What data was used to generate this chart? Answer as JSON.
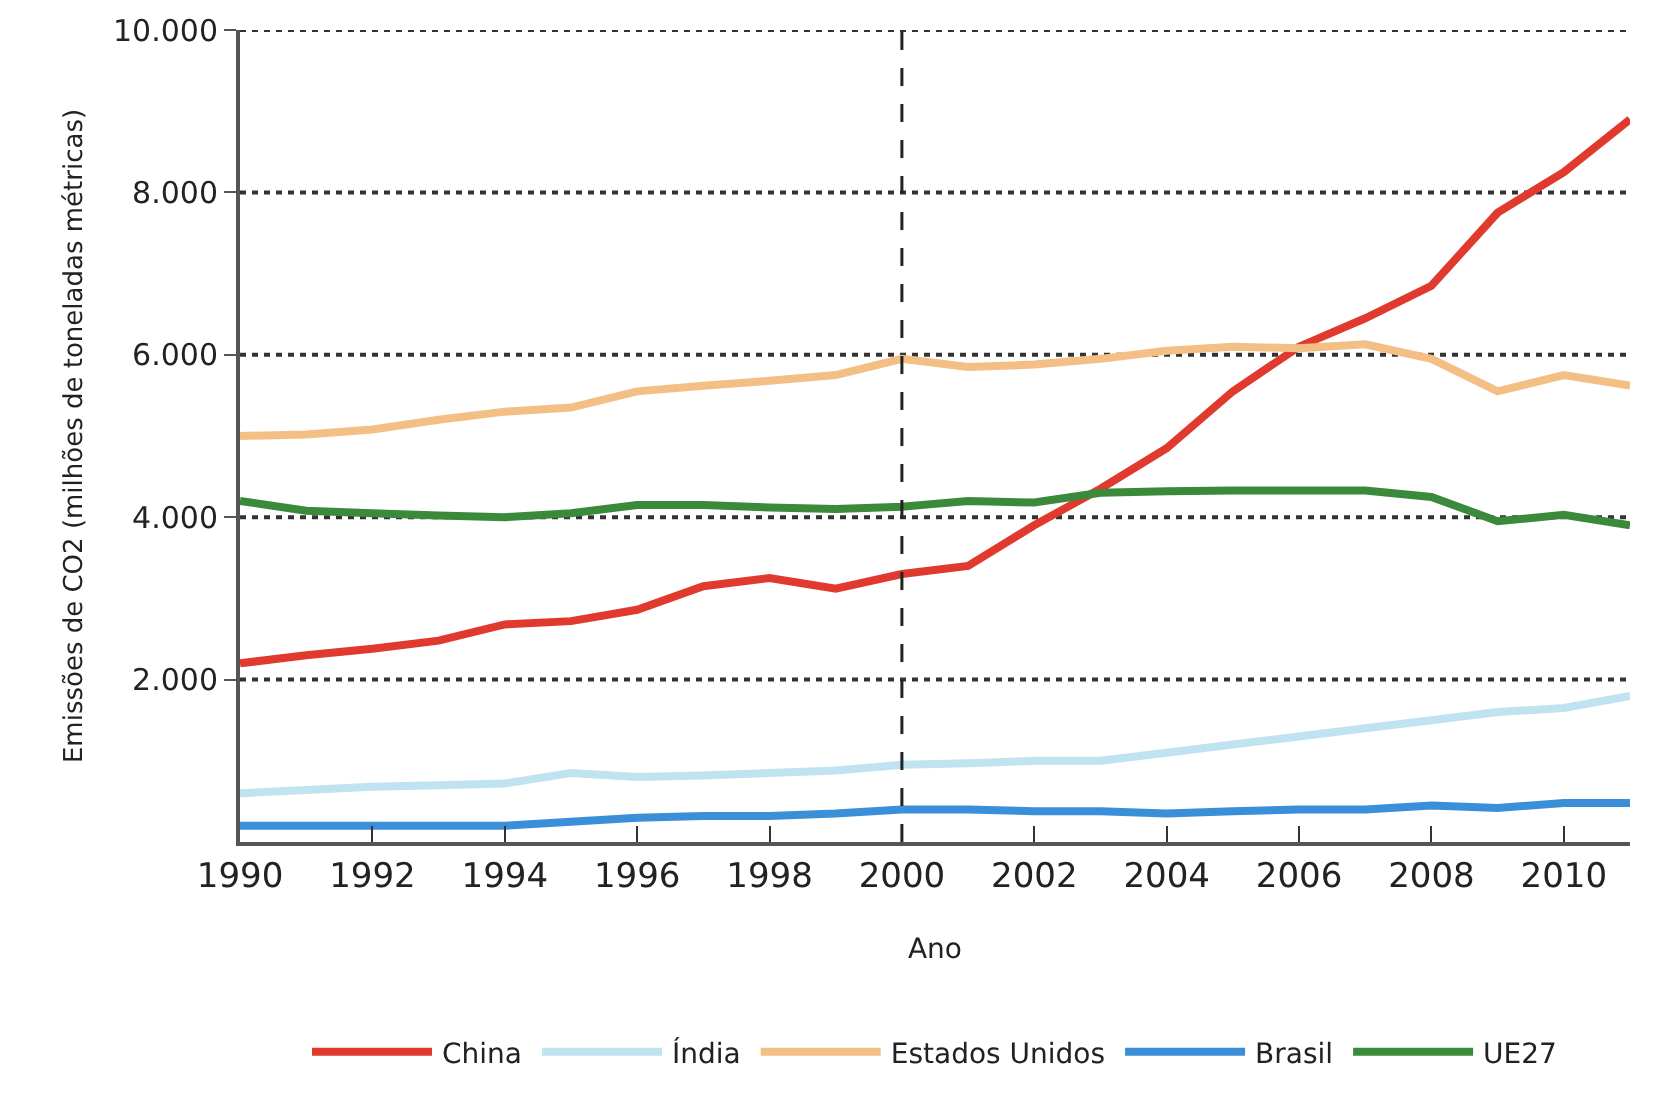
{
  "chart_data": {
    "type": "line",
    "xlabel": "Ano",
    "ylabel": "Emissões de CO2 (milhões de toneladas métricas)",
    "x": [
      1990,
      1991,
      1992,
      1993,
      1994,
      1995,
      1996,
      1997,
      1998,
      1999,
      2000,
      2001,
      2002,
      2003,
      2004,
      2005,
      2006,
      2007,
      2008,
      2009,
      2010,
      2011
    ],
    "series": [
      {
        "name": "China",
        "color": "#e03a2f",
        "values": [
          2200,
          2300,
          2380,
          2480,
          2680,
          2720,
          2860,
          3150,
          3250,
          3120,
          3300,
          3400,
          3900,
          4350,
          4850,
          5550,
          6100,
          6450,
          6850,
          7750,
          8250,
          8900
        ]
      },
      {
        "name": "Índia",
        "color": "#bfe3f0",
        "values": [
          600,
          640,
          680,
          700,
          720,
          850,
          800,
          820,
          850,
          880,
          950,
          970,
          1000,
          1000,
          1100,
          1200,
          1300,
          1400,
          1500,
          1600,
          1650,
          1800
        ]
      },
      {
        "name": "Estados Unidos",
        "color": "#f3bf85",
        "values": [
          5000,
          5020,
          5080,
          5200,
          5300,
          5350,
          5550,
          5620,
          5680,
          5750,
          5950,
          5850,
          5880,
          5950,
          6050,
          6100,
          6080,
          6130,
          5950,
          5550,
          5750,
          5620
        ]
      },
      {
        "name": "Brasil",
        "color": "#3a8fd8",
        "values": [
          200,
          200,
          200,
          200,
          200,
          250,
          300,
          320,
          320,
          350,
          400,
          400,
          380,
          380,
          350,
          380,
          400,
          400,
          450,
          420,
          480,
          480
        ]
      },
      {
        "name": "UE27",
        "color": "#3b8a3b",
        "values": [
          4200,
          4080,
          4050,
          4020,
          4000,
          4050,
          4150,
          4150,
          4120,
          4100,
          4130,
          4200,
          4180,
          4300,
          4320,
          4330,
          4330,
          4330,
          4250,
          3950,
          4030,
          3900
        ]
      }
    ],
    "xlim": [
      1990,
      2011
    ],
    "xticks": [
      1990,
      1992,
      1994,
      1996,
      1998,
      2000,
      2002,
      2004,
      2006,
      2008,
      2010
    ],
    "ylim": [
      0,
      10000
    ],
    "yticks": [
      {
        "value": 2000,
        "label": "2.000"
      },
      {
        "value": 4000,
        "label": "4.000"
      },
      {
        "value": 6000,
        "label": "6.000"
      },
      {
        "value": 8000,
        "label": "8.000"
      },
      {
        "value": 10000,
        "label": "10.000"
      }
    ],
    "ref_lines": [
      {
        "axis": "x",
        "value": 2000,
        "color": "#222222",
        "line_style": "dashed"
      }
    ],
    "grid": "y",
    "legend": "bottom",
    "line_style": "solid",
    "marker": "none"
  }
}
